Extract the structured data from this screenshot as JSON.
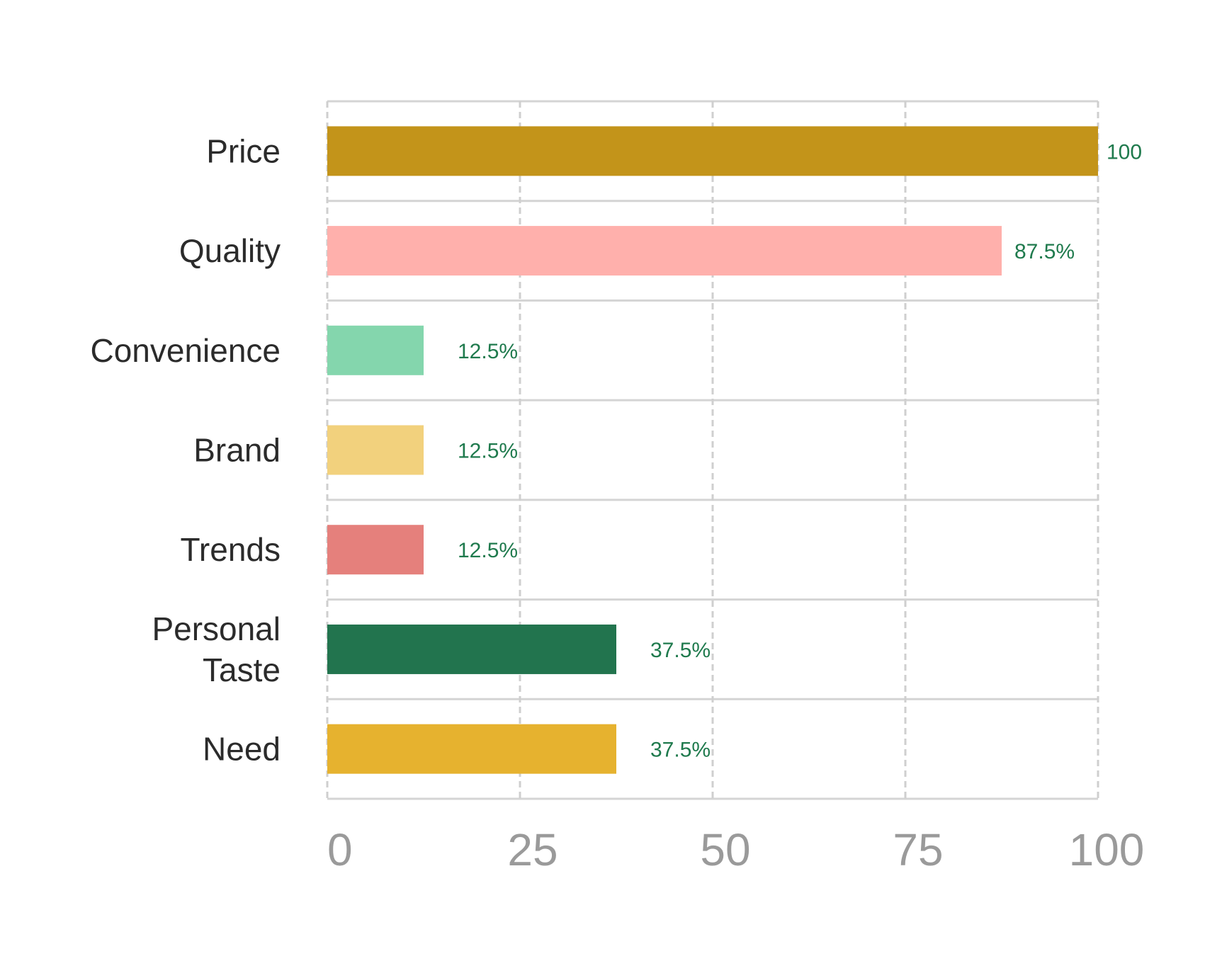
{
  "chart_data": {
    "type": "bar",
    "orientation": "horizontal",
    "categories": [
      "Price",
      "Quality",
      "Convenience",
      "Brand",
      "Trends",
      "Personal Taste",
      "Need"
    ],
    "category_lines": [
      [
        "Price"
      ],
      [
        "Quality"
      ],
      [
        "Convenience"
      ],
      [
        "Brand"
      ],
      [
        "Trends"
      ],
      [
        "Personal",
        "Taste"
      ],
      [
        "Need"
      ]
    ],
    "values": [
      100,
      87.5,
      12.5,
      12.5,
      12.5,
      37.5,
      37.5
    ],
    "data_labels": [
      "100",
      "87.5%",
      "12.5%",
      "12.5%",
      "12.5%",
      "37.5%",
      "37.5%"
    ],
    "colors": [
      "#c3941a",
      "#ffb0ac",
      "#84d6ad",
      "#f2d17d",
      "#e5807c",
      "#22744e",
      "#e6b22f"
    ],
    "data_label_color": "#1f7a4d",
    "xlim": [
      0,
      100
    ],
    "xticks": [
      0,
      25,
      50,
      75,
      100
    ],
    "xtick_labels": [
      "0",
      "25",
      "50",
      "75",
      "100"
    ],
    "grid": true,
    "title": "",
    "xlabel": "",
    "ylabel": ""
  }
}
